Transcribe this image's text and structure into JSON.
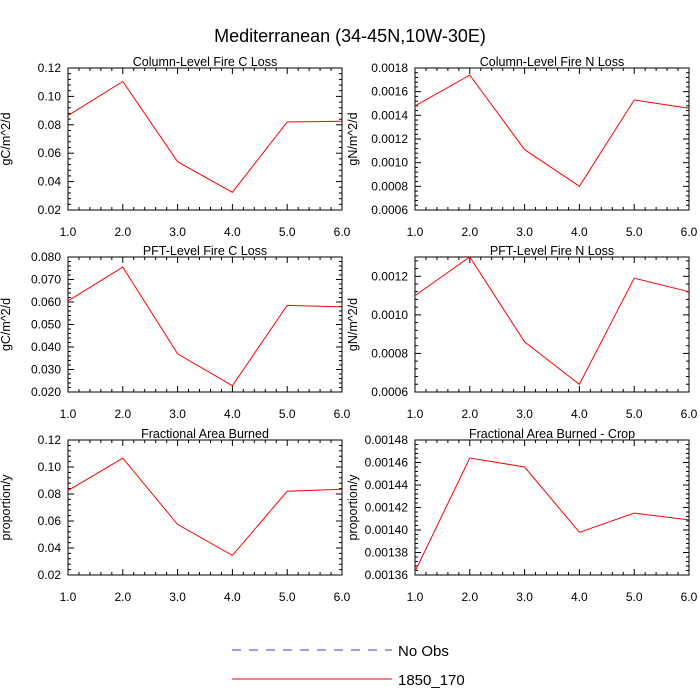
{
  "figure_title": "Mediterranean (34-45N,10W-30E)",
  "legend": {
    "items": [
      {
        "label": "No Obs",
        "style": "dashed",
        "color": "#3b3bd6"
      },
      {
        "label": "1850_170",
        "style": "solid",
        "color": "#ff0000"
      }
    ]
  },
  "chart_data": [
    {
      "type": "line",
      "title": "Column-Level Fire C Loss",
      "xlabel": "",
      "ylabel": "gC/m^2/d",
      "x": [
        1,
        2,
        3,
        4,
        5,
        6
      ],
      "xlim": [
        1,
        6
      ],
      "xticks": [
        "1.0",
        "2.0",
        "3.0",
        "4.0",
        "5.0",
        "6.0"
      ],
      "ylim": [
        0.02,
        0.12
      ],
      "yticks": [
        0.02,
        0.04,
        0.06,
        0.08,
        0.1,
        0.12
      ],
      "ytick_labels": [
        "0.02",
        "0.04",
        "0.06",
        "0.08",
        "0.10",
        "0.12"
      ],
      "series": [
        {
          "name": "1850_170",
          "color": "#ff0000",
          "values": [
            0.0865,
            0.1105,
            0.054,
            0.0325,
            0.082,
            0.0825
          ]
        }
      ]
    },
    {
      "type": "line",
      "title": "Column-Level Fire N Loss",
      "xlabel": "",
      "ylabel": "gN/m^2/d",
      "x": [
        1,
        2,
        3,
        4,
        5,
        6
      ],
      "xlim": [
        1,
        6
      ],
      "xticks": [
        "1.0",
        "2.0",
        "3.0",
        "4.0",
        "5.0",
        "6.0"
      ],
      "ylim": [
        0.0006,
        0.0018
      ],
      "yticks": [
        0.0006,
        0.0008,
        0.001,
        0.0012,
        0.0014,
        0.0016,
        0.0018
      ],
      "ytick_labels": [
        "0.0006",
        "0.0008",
        "0.0010",
        "0.0012",
        "0.0014",
        "0.0016",
        "0.0018"
      ],
      "series": [
        {
          "name": "1850_170",
          "color": "#ff0000",
          "values": [
            0.00148,
            0.00174,
            0.00111,
            0.0008,
            0.00153,
            0.00146
          ]
        }
      ]
    },
    {
      "type": "line",
      "title": "PFT-Level Fire C Loss",
      "xlabel": "",
      "ylabel": "gC/m^2/d",
      "x": [
        1,
        2,
        3,
        4,
        5,
        6
      ],
      "xlim": [
        1,
        6
      ],
      "xticks": [
        "1.0",
        "2.0",
        "3.0",
        "4.0",
        "5.0",
        "6.0"
      ],
      "ylim": [
        0.02,
        0.08
      ],
      "yticks": [
        0.02,
        0.03,
        0.04,
        0.05,
        0.06,
        0.07,
        0.08
      ],
      "ytick_labels": [
        "0.020",
        "0.030",
        "0.040",
        "0.050",
        "0.060",
        "0.070",
        "0.080"
      ],
      "series": [
        {
          "name": "1850_170",
          "color": "#ff0000",
          "values": [
            0.0605,
            0.0755,
            0.037,
            0.0228,
            0.0585,
            0.0578
          ]
        }
      ]
    },
    {
      "type": "line",
      "title": "PFT-Level Fire N Loss",
      "xlabel": "",
      "ylabel": "gN/m^2/d",
      "x": [
        1,
        2,
        3,
        4,
        5,
        6
      ],
      "xlim": [
        1,
        6
      ],
      "xticks": [
        "1.0",
        "2.0",
        "3.0",
        "4.0",
        "5.0",
        "6.0"
      ],
      "ylim": [
        0.0006,
        0.0013
      ],
      "yticks": [
        0.0006,
        0.0008,
        0.001,
        0.0012
      ],
      "ytick_labels": [
        "0.0006",
        "0.0008",
        "0.0010",
        "0.0012"
      ],
      "series": [
        {
          "name": "1850_170",
          "color": "#ff0000",
          "values": [
            0.0011,
            0.0013,
            0.00086,
            0.00064,
            0.00119,
            0.00112
          ]
        }
      ]
    },
    {
      "type": "line",
      "title": "Fractional Area Burned",
      "xlabel": "",
      "ylabel": "proportion/y",
      "x": [
        1,
        2,
        3,
        4,
        5,
        6
      ],
      "xlim": [
        1,
        6
      ],
      "xticks": [
        "1.0",
        "2.0",
        "3.0",
        "4.0",
        "5.0",
        "6.0"
      ],
      "ylim": [
        0.02,
        0.12
      ],
      "yticks": [
        0.02,
        0.04,
        0.06,
        0.08,
        0.1,
        0.12
      ],
      "ytick_labels": [
        "0.02",
        "0.04",
        "0.06",
        "0.08",
        "0.10",
        "0.12"
      ],
      "series": [
        {
          "name": "1850_170",
          "color": "#ff0000",
          "values": [
            0.0825,
            0.1065,
            0.0575,
            0.0345,
            0.082,
            0.0835
          ]
        }
      ]
    },
    {
      "type": "line",
      "title": "Fractional Area Burned - Crop",
      "xlabel": "",
      "ylabel": "proportion/y",
      "x": [
        1,
        2,
        3,
        4,
        5,
        6
      ],
      "xlim": [
        1,
        6
      ],
      "xticks": [
        "1.0",
        "2.0",
        "3.0",
        "4.0",
        "5.0",
        "6.0"
      ],
      "ylim": [
        0.00136,
        0.00148
      ],
      "yticks": [
        0.00136,
        0.00138,
        0.0014,
        0.00142,
        0.00144,
        0.00146,
        0.00148
      ],
      "ytick_labels": [
        "0.00136",
        "0.00138",
        "0.00140",
        "0.00142",
        "0.00144",
        "0.00146",
        "0.00148"
      ],
      "series": [
        {
          "name": "1850_170",
          "color": "#ff0000",
          "values": [
            0.001363,
            0.001464,
            0.001456,
            0.001398,
            0.001415,
            0.001409
          ]
        }
      ]
    }
  ]
}
